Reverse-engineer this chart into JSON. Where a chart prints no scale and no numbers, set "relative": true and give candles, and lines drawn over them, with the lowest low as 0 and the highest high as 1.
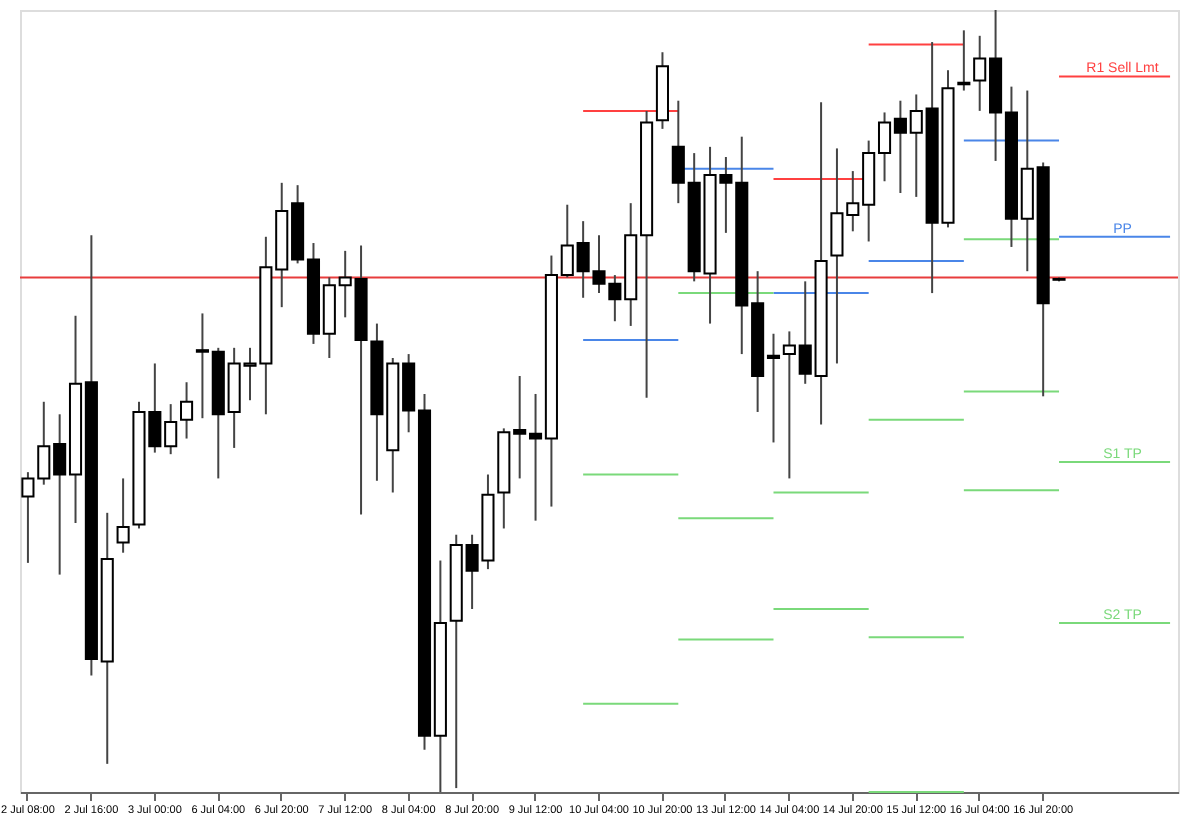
{
  "chart_data": {
    "type": "candlestick",
    "relative": true,
    "categories": [
      "2 Jul 08:00",
      null,
      null,
      null,
      "2 Jul 16:00",
      null,
      null,
      null,
      "3 Jul 00:00",
      null,
      null,
      null,
      "6 Jul 04:00",
      null,
      null,
      null,
      "6 Jul 20:00",
      null,
      null,
      null,
      "7 Jul 12:00",
      null,
      null,
      null,
      "8 Jul 04:00",
      null,
      null,
      null,
      "8 Jul 20:00",
      null,
      null,
      null,
      "9 Jul 12:00",
      null,
      null,
      null,
      "10 Jul 04:00",
      null,
      null,
      null,
      "10 Jul 20:00",
      null,
      null,
      null,
      "13 Jul 12:00",
      null,
      null,
      null,
      "14 Jul 04:00",
      null,
      null,
      null,
      "14 Jul 20:00",
      null,
      null,
      null,
      "15 Jul 12:00",
      null,
      null,
      null,
      "16 Jul 04:00",
      null,
      null,
      null,
      "16 Jul 20:00",
      null,
      null,
      null,
      null,
      null,
      null,
      null,
      null
    ],
    "ohlc": [
      [
        0.378,
        0.409,
        0.293,
        0.401
      ],
      [
        0.401,
        0.499,
        0.393,
        0.442
      ],
      [
        0.445,
        0.483,
        0.278,
        0.406
      ],
      [
        0.406,
        0.609,
        0.344,
        0.522
      ],
      [
        0.524,
        0.712,
        0.149,
        0.17
      ],
      [
        0.167,
        0.357,
        0.036,
        0.298
      ],
      [
        0.319,
        0.401,
        0.306,
        0.339
      ],
      [
        0.342,
        0.499,
        0.337,
        0.486
      ],
      [
        0.486,
        0.548,
        0.434,
        0.442
      ],
      [
        0.442,
        0.496,
        0.432,
        0.473
      ],
      [
        0.476,
        0.524,
        0.452,
        0.499
      ],
      [
        0.563,
        0.612,
        0.478,
        0.565
      ],
      [
        0.563,
        0.568,
        0.401,
        0.483
      ],
      [
        0.486,
        0.568,
        0.44,
        0.548
      ],
      [
        0.545,
        0.568,
        0.501,
        0.548
      ],
      [
        0.548,
        0.71,
        0.483,
        0.671
      ],
      [
        0.668,
        0.779,
        0.62,
        0.743
      ],
      [
        0.753,
        0.776,
        0.676,
        0.681
      ],
      [
        0.681,
        0.702,
        0.573,
        0.586
      ],
      [
        0.586,
        0.658,
        0.555,
        0.648
      ],
      [
        0.648,
        0.692,
        0.607,
        0.658
      ],
      [
        0.656,
        0.699,
        0.355,
        0.578
      ],
      [
        0.576,
        0.599,
        0.398,
        0.483
      ],
      [
        0.437,
        0.555,
        0.383,
        0.548
      ],
      [
        0.548,
        0.56,
        0.46,
        0.488
      ],
      [
        0.488,
        0.509,
        0.054,
        0.072
      ],
      [
        0.072,
        0.296,
        0.0,
        0.216
      ],
      [
        0.219,
        0.329,
        0.005,
        0.316
      ],
      [
        0.316,
        0.329,
        0.234,
        0.283
      ],
      [
        0.296,
        0.406,
        0.285,
        0.38
      ],
      [
        0.383,
        0.465,
        0.337,
        0.46
      ],
      [
        0.463,
        0.532,
        0.401,
        0.458
      ],
      [
        0.458,
        0.509,
        0.347,
        0.452
      ],
      [
        0.452,
        0.686,
        0.365,
        0.661
      ],
      [
        0.661,
        0.751,
        0.658,
        0.699
      ],
      [
        0.702,
        0.73,
        0.632,
        0.666
      ],
      [
        0.666,
        0.712,
        0.638,
        0.65
      ],
      [
        0.65,
        0.661,
        0.602,
        0.63
      ],
      [
        0.63,
        0.753,
        0.596,
        0.712
      ],
      [
        0.712,
        0.871,
        0.504,
        0.856
      ],
      [
        0.859,
        0.946,
        0.848,
        0.928
      ],
      [
        0.825,
        0.884,
        0.753,
        0.779
      ],
      [
        0.779,
        0.817,
        0.653,
        0.666
      ],
      [
        0.663,
        0.825,
        0.599,
        0.789
      ],
      [
        0.789,
        0.812,
        0.715,
        0.779
      ],
      [
        0.779,
        0.838,
        0.56,
        0.622
      ],
      [
        0.625,
        0.666,
        0.486,
        0.532
      ],
      [
        0.558,
        0.586,
        0.447,
        0.555
      ],
      [
        0.56,
        0.589,
        0.401,
        0.571
      ],
      [
        0.571,
        0.653,
        0.522,
        0.535
      ],
      [
        0.532,
        0.882,
        0.47,
        0.679
      ],
      [
        0.686,
        0.823,
        0.548,
        0.74
      ],
      [
        0.738,
        0.794,
        0.717,
        0.753
      ],
      [
        0.751,
        0.833,
        0.704,
        0.817
      ],
      [
        0.817,
        0.869,
        0.781,
        0.856
      ],
      [
        0.861,
        0.884,
        0.766,
        0.843
      ],
      [
        0.843,
        0.892,
        0.761,
        0.871
      ],
      [
        0.874,
        0.959,
        0.638,
        0.728
      ],
      [
        0.728,
        0.923,
        0.722,
        0.9
      ],
      [
        0.907,
        0.974,
        0.897,
        0.905
      ],
      [
        0.91,
        0.967,
        0.871,
        0.938
      ],
      [
        0.938,
        1.0,
        0.807,
        0.869
      ],
      [
        0.869,
        0.902,
        0.697,
        0.733
      ],
      [
        0.733,
        0.897,
        0.666,
        0.797
      ],
      [
        0.799,
        0.805,
        0.506,
        0.625
      ],
      [
        0.656,
        0.658,
        0.653,
        0.655
      ],
      null,
      null,
      null,
      null,
      null,
      null,
      null
    ],
    "series": [
      {
        "type": "line",
        "color": "#ff4040",
        "values": [
          null,
          null,
          null,
          null,
          null,
          null,
          null,
          null,
          null,
          null,
          null,
          null,
          null,
          null,
          null,
          null,
          null,
          null,
          null,
          null,
          null,
          null,
          null,
          null,
          null,
          null,
          null,
          null,
          null,
          null,
          null,
          null,
          null,
          null,
          null,
          0.871,
          0.871,
          0.871,
          0.871,
          0.871,
          0.871,
          0.871,
          null,
          null,
          null,
          null,
          null,
          0.784,
          0.784,
          0.784,
          0.784,
          0.784,
          0.784,
          0.784,
          null,
          null,
          null,
          null,
          null,
          null,
          null,
          null,
          null,
          null,
          null,
          null,
          null,
          null,
          null,
          null,
          null,
          null,
          null
        ]
      },
      {
        "type": "line",
        "color": "#4a86e8",
        "values": [
          null,
          null,
          null,
          null,
          null,
          null,
          null,
          null,
          null,
          null,
          null,
          null,
          null,
          null,
          null,
          null,
          null,
          null,
          null,
          null,
          null,
          null,
          null,
          null,
          null,
          null,
          null,
          null,
          null,
          null,
          null,
          null,
          null,
          null,
          null,
          0.578,
          0.578,
          0.578,
          0.578,
          0.578,
          0.578,
          0.578,
          null,
          null,
          null,
          null,
          null,
          0.638,
          0.638,
          0.638,
          0.638,
          0.638,
          0.638,
          0.638,
          null,
          null,
          null,
          null,
          null,
          0.833,
          0.833,
          0.833,
          0.833,
          0.833,
          0.833,
          0.833,
          null,
          null,
          null,
          null,
          null,
          null,
          null
        ]
      },
      {
        "type": "line",
        "color": "#7ad97a",
        "values": [
          null,
          null,
          null,
          null,
          null,
          null,
          null,
          null,
          null,
          null,
          null,
          null,
          null,
          null,
          null,
          null,
          null,
          null,
          null,
          null,
          null,
          null,
          null,
          null,
          null,
          null,
          null,
          null,
          null,
          null,
          null,
          null,
          null,
          null,
          null,
          0.406,
          0.406,
          0.406,
          0.406,
          0.406,
          0.406,
          0.406,
          null,
          null,
          null,
          null,
          null,
          0.383,
          0.383,
          0.383,
          0.383,
          0.383,
          0.383,
          0.383,
          null,
          null,
          null,
          null,
          null,
          0.707,
          0.707,
          0.707,
          0.707,
          0.707,
          0.707,
          0.707,
          null,
          null,
          null,
          null,
          null,
          null,
          null
        ]
      },
      {
        "type": "line",
        "color": "#7ad97a",
        "values": [
          null,
          null,
          null,
          null,
          null,
          null,
          null,
          null,
          null,
          null,
          null,
          null,
          null,
          null,
          null,
          null,
          null,
          null,
          null,
          null,
          null,
          null,
          null,
          null,
          null,
          null,
          null,
          null,
          null,
          null,
          null,
          null,
          null,
          null,
          null,
          0.113,
          0.113,
          0.113,
          0.113,
          0.113,
          0.113,
          0.113,
          null,
          null,
          null,
          null,
          null,
          0.234,
          0.234,
          0.234,
          0.234,
          0.234,
          0.234,
          0.234,
          null,
          null,
          null,
          null,
          null,
          0.512,
          0.512,
          0.512,
          0.512,
          0.512,
          0.512,
          0.512,
          null,
          null,
          null,
          null,
          null,
          null,
          null
        ]
      },
      {
        "type": "line",
        "color": "#7ad97a",
        "values": [
          null,
          null,
          null,
          null,
          null,
          null,
          null,
          null,
          null,
          null,
          null,
          null,
          null,
          null,
          null,
          null,
          null,
          null,
          null,
          null,
          null,
          null,
          null,
          null,
          null,
          null,
          null,
          null,
          null,
          null,
          null,
          null,
          null,
          null,
          null,
          null,
          null,
          null,
          null,
          null,
          null,
          null,
          null,
          null,
          null,
          null,
          null,
          null,
          null,
          null,
          null,
          null,
          null,
          null,
          null,
          null,
          null,
          null,
          null,
          0.386,
          0.386,
          0.386,
          0.386,
          0.386,
          0.386,
          0.386,
          null,
          null,
          null,
          null,
          null,
          null,
          null
        ]
      },
      {
        "type": "line",
        "color": "#ff4040",
        "values": [
          null,
          null,
          null,
          null,
          null,
          null,
          null,
          null,
          null,
          null,
          null,
          null,
          null,
          null,
          null,
          null,
          null,
          null,
          null,
          null,
          null,
          null,
          null,
          null,
          null,
          null,
          null,
          null,
          null,
          null,
          null,
          null,
          null,
          null,
          null,
          null,
          null,
          null,
          null,
          null,
          null,
          null,
          null,
          null,
          null,
          null,
          null,
          null,
          null,
          null,
          null,
          null,
          null,
          0.956,
          0.956,
          0.956,
          0.956,
          0.956,
          0.956,
          0.956,
          null,
          null,
          null,
          null,
          null,
          null,
          null,
          null,
          null,
          null,
          null,
          null,
          null
        ]
      },
      {
        "type": "line",
        "color": "#4a86e8",
        "values": [
          null,
          null,
          null,
          null,
          null,
          null,
          null,
          null,
          null,
          null,
          null,
          null,
          null,
          null,
          null,
          null,
          null,
          null,
          null,
          null,
          null,
          null,
          null,
          null,
          null,
          null,
          null,
          null,
          null,
          null,
          null,
          null,
          null,
          null,
          null,
          null,
          null,
          null,
          null,
          null,
          null,
          0.797,
          0.797,
          0.797,
          0.797,
          0.797,
          0.797,
          0.797,
          null,
          null,
          null,
          null,
          null,
          0.679,
          0.679,
          0.679,
          0.679,
          0.679,
          0.679,
          0.679,
          null,
          null,
          null,
          null,
          null,
          null,
          null,
          null,
          null,
          null,
          null,
          null,
          null
        ]
      },
      {
        "type": "line",
        "color": "#7ad97a",
        "values": [
          null,
          null,
          null,
          null,
          null,
          null,
          null,
          null,
          null,
          null,
          null,
          null,
          null,
          null,
          null,
          null,
          null,
          null,
          null,
          null,
          null,
          null,
          null,
          null,
          null,
          null,
          null,
          null,
          null,
          null,
          null,
          null,
          null,
          null,
          null,
          null,
          null,
          null,
          null,
          null,
          null,
          0.638,
          0.638,
          0.638,
          0.638,
          0.638,
          0.638,
          0.638,
          null,
          null,
          null,
          null,
          null,
          0.476,
          0.476,
          0.476,
          0.476,
          0.476,
          0.476,
          0.476,
          null,
          null,
          null,
          null,
          null,
          null,
          null,
          null,
          null,
          null,
          null,
          null,
          null
        ]
      },
      {
        "type": "line",
        "color": "#7ad97a",
        "values": [
          null,
          null,
          null,
          null,
          null,
          null,
          null,
          null,
          null,
          null,
          null,
          null,
          null,
          null,
          null,
          null,
          null,
          null,
          null,
          null,
          null,
          null,
          null,
          null,
          null,
          null,
          null,
          null,
          null,
          null,
          null,
          null,
          null,
          null,
          null,
          null,
          null,
          null,
          null,
          null,
          null,
          0.35,
          0.35,
          0.35,
          0.35,
          0.35,
          0.35,
          0.35,
          null,
          null,
          null,
          null,
          null,
          0.198,
          0.198,
          0.198,
          0.198,
          0.198,
          0.198,
          0.198,
          null,
          null,
          null,
          null,
          null,
          null,
          null,
          null,
          null,
          null,
          null,
          null,
          null
        ]
      },
      {
        "type": "line",
        "color": "#7ad97a",
        "values": [
          null,
          null,
          null,
          null,
          null,
          null,
          null,
          null,
          null,
          null,
          null,
          null,
          null,
          null,
          null,
          null,
          null,
          null,
          null,
          null,
          null,
          null,
          null,
          null,
          null,
          null,
          null,
          null,
          null,
          null,
          null,
          null,
          null,
          null,
          null,
          null,
          null,
          null,
          null,
          null,
          null,
          0.195,
          0.195,
          0.195,
          0.195,
          0.195,
          0.195,
          0.195,
          null,
          null,
          null,
          null,
          null,
          0.0,
          0.0,
          0.0,
          0.0,
          0.0,
          0.0,
          0.0,
          null,
          null,
          null,
          null,
          null,
          null,
          null,
          null,
          null,
          null,
          null,
          null,
          null
        ]
      },
      {
        "type": "line",
        "name": "R1 Sell Lmt",
        "color": "#ff4040",
        "values": [
          null,
          null,
          null,
          null,
          null,
          null,
          null,
          null,
          null,
          null,
          null,
          null,
          null,
          null,
          null,
          null,
          null,
          null,
          null,
          null,
          null,
          null,
          null,
          null,
          null,
          null,
          null,
          null,
          null,
          null,
          null,
          null,
          null,
          null,
          null,
          null,
          null,
          null,
          null,
          null,
          null,
          null,
          null,
          null,
          null,
          null,
          null,
          null,
          null,
          null,
          null,
          null,
          null,
          null,
          null,
          null,
          null,
          null,
          null,
          null,
          null,
          null,
          null,
          null,
          null,
          0.915,
          0.915,
          0.915,
          0.915,
          0.915,
          0.915,
          0.915,
          0.915
        ]
      },
      {
        "type": "line",
        "name": "PP",
        "color": "#4a86e8",
        "values": [
          null,
          null,
          null,
          null,
          null,
          null,
          null,
          null,
          null,
          null,
          null,
          null,
          null,
          null,
          null,
          null,
          null,
          null,
          null,
          null,
          null,
          null,
          null,
          null,
          null,
          null,
          null,
          null,
          null,
          null,
          null,
          null,
          null,
          null,
          null,
          null,
          null,
          null,
          null,
          null,
          null,
          null,
          null,
          null,
          null,
          null,
          null,
          null,
          null,
          null,
          null,
          null,
          null,
          null,
          null,
          null,
          null,
          null,
          null,
          null,
          null,
          null,
          null,
          null,
          null,
          0.71,
          0.71,
          0.71,
          0.71,
          0.71,
          0.71,
          0.71,
          0.71
        ]
      },
      {
        "type": "line",
        "name": "S1 TP",
        "color": "#7ad97a",
        "values": [
          null,
          null,
          null,
          null,
          null,
          null,
          null,
          null,
          null,
          null,
          null,
          null,
          null,
          null,
          null,
          null,
          null,
          null,
          null,
          null,
          null,
          null,
          null,
          null,
          null,
          null,
          null,
          null,
          null,
          null,
          null,
          null,
          null,
          null,
          null,
          null,
          null,
          null,
          null,
          null,
          null,
          null,
          null,
          null,
          null,
          null,
          null,
          null,
          null,
          null,
          null,
          null,
          null,
          null,
          null,
          null,
          null,
          null,
          null,
          null,
          null,
          null,
          null,
          null,
          null,
          0.422,
          0.422,
          0.422,
          0.422,
          0.422,
          0.422,
          0.422,
          0.422
        ]
      },
      {
        "type": "line",
        "name": "S2 TP",
        "color": "#7ad97a",
        "values": [
          null,
          null,
          null,
          null,
          null,
          null,
          null,
          null,
          null,
          null,
          null,
          null,
          null,
          null,
          null,
          null,
          null,
          null,
          null,
          null,
          null,
          null,
          null,
          null,
          null,
          null,
          null,
          null,
          null,
          null,
          null,
          null,
          null,
          null,
          null,
          null,
          null,
          null,
          null,
          null,
          null,
          null,
          null,
          null,
          null,
          null,
          null,
          null,
          null,
          null,
          null,
          null,
          null,
          null,
          null,
          null,
          null,
          null,
          null,
          null,
          null,
          null,
          null,
          null,
          null,
          0.216,
          0.216,
          0.216,
          0.216,
          0.216,
          0.216,
          0.216,
          0.216
        ]
      }
    ],
    "ref_lines": [
      {
        "axis": "y",
        "value": 0.658,
        "color": "#e83c3c"
      }
    ]
  }
}
